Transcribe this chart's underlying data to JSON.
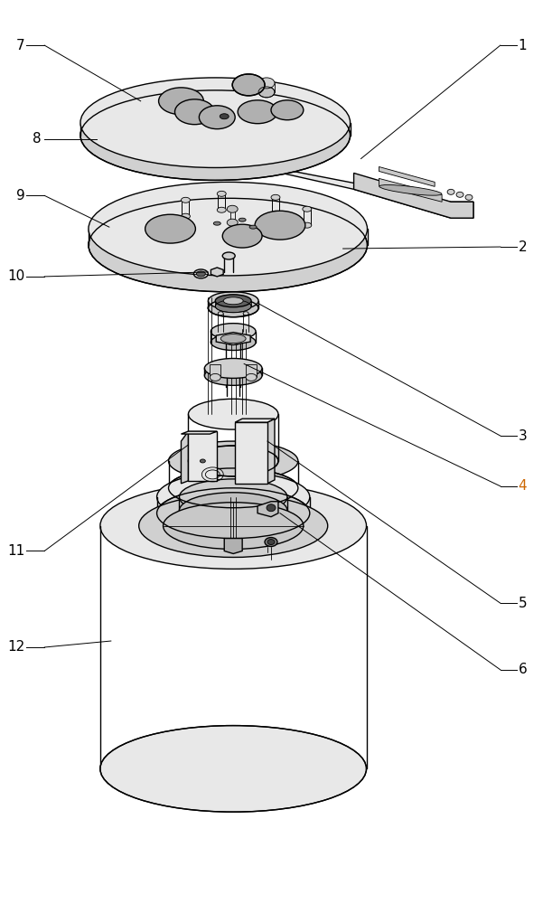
{
  "bg_color": "#ffffff",
  "line_color": "#000000",
  "lw": 1.0,
  "tlw": 0.6,
  "ann_lw": 0.7,
  "label4_color": "#cc6600"
}
